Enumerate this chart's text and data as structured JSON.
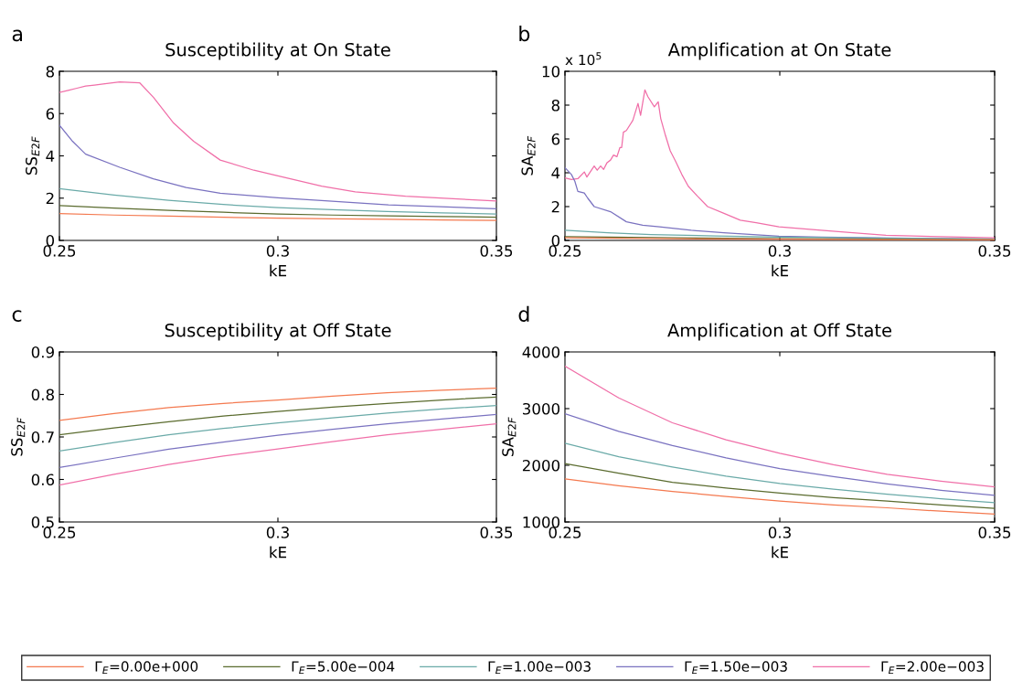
{
  "chart_data": [
    {
      "type": "line",
      "title": "Susceptibility at On State",
      "xlabel": "kE",
      "ylabel": "SS$_{E2F}$",
      "annotations": [
        "a"
      ],
      "xlim": [
        0.25,
        0.35
      ],
      "xticks": [
        0.25,
        0.3,
        0.35
      ],
      "ylim": [
        0,
        8
      ],
      "yticks": [
        0,
        2,
        4,
        6,
        8
      ],
      "grid": false,
      "legend": "bottom",
      "series": [
        {
          "name": "Γ$_{E}$=0.00e+000",
          "color": "#f4794f",
          "x": [
            0.25,
            0.2625,
            0.275,
            0.2875,
            0.3,
            0.3125,
            0.325,
            0.3375,
            0.35
          ],
          "values": [
            1.27,
            1.2,
            1.15,
            1.1,
            1.05,
            1.02,
            1.0,
            0.97,
            0.95
          ]
        },
        {
          "name": "Γ$_{E}$=5.00e−004",
          "color": "#5a6b2e",
          "x": [
            0.25,
            0.2625,
            0.275,
            0.2875,
            0.3,
            0.3125,
            0.325,
            0.3375,
            0.35
          ],
          "values": [
            1.65,
            1.53,
            1.42,
            1.33,
            1.25,
            1.2,
            1.16,
            1.13,
            1.1
          ]
        },
        {
          "name": "Γ$_{E}$=1.00e−003",
          "color": "#6aaaa8",
          "x": [
            0.25,
            0.2625,
            0.275,
            0.2875,
            0.3,
            0.3125,
            0.325,
            0.3375,
            0.35
          ],
          "values": [
            2.45,
            2.15,
            1.9,
            1.7,
            1.55,
            1.45,
            1.37,
            1.3,
            1.25
          ]
        },
        {
          "name": "Γ$_{E}$=1.50e−003",
          "color": "#7a72c0",
          "x": [
            0.25,
            0.253,
            0.256,
            0.2638,
            0.2715,
            0.279,
            0.2868,
            0.3,
            0.31,
            0.3253,
            0.35
          ],
          "values": [
            5.45,
            4.69,
            4.08,
            3.46,
            2.91,
            2.5,
            2.23,
            2.02,
            1.89,
            1.68,
            1.5
          ]
        },
        {
          "name": "Γ$_{E}$=2.00e−003",
          "color": "#f06fa8",
          "x": [
            0.25,
            0.252,
            0.254,
            0.256,
            0.258,
            0.26,
            0.2638,
            0.2684,
            0.2715,
            0.276,
            0.2807,
            0.2868,
            0.2945,
            0.3,
            0.31,
            0.3177,
            0.3292,
            0.35
          ],
          "values": [
            7.0,
            7.1,
            7.2,
            7.3,
            7.35,
            7.4,
            7.5,
            7.45,
            6.77,
            5.58,
            4.69,
            3.8,
            3.32,
            3.05,
            2.57,
            2.3,
            2.09,
            1.86
          ]
        }
      ]
    },
    {
      "type": "line",
      "title": "Amplification at On State",
      "xlabel": "kE",
      "ylabel": "SA$_{E2F}$",
      "annotations": [
        "b",
        "x 10$^{5}$"
      ],
      "xlim": [
        0.25,
        0.35
      ],
      "xticks": [
        0.25,
        0.3,
        0.35
      ],
      "ylim": [
        0,
        10
      ],
      "yticks": [
        0,
        2,
        4,
        6,
        8,
        10
      ],
      "grid": false,
      "series": [
        {
          "color": "#f4794f",
          "x": [
            0.25,
            0.275,
            0.3,
            0.325,
            0.35
          ],
          "values": [
            0.15,
            0.1,
            0.07,
            0.05,
            0.03
          ]
        },
        {
          "color": "#5a6b2e",
          "x": [
            0.25,
            0.275,
            0.3,
            0.325,
            0.35
          ],
          "values": [
            0.22,
            0.15,
            0.1,
            0.07,
            0.05
          ]
        },
        {
          "color": "#6aaaa8",
          "x": [
            0.25,
            0.26,
            0.27,
            0.285,
            0.3,
            0.325,
            0.35
          ],
          "values": [
            0.6,
            0.45,
            0.35,
            0.27,
            0.2,
            0.13,
            0.08
          ]
        },
        {
          "color": "#7a72c0",
          "x": [
            0.25,
            0.2515,
            0.2523,
            0.253,
            0.2545,
            0.2553,
            0.2568,
            0.2606,
            0.2643,
            0.2681,
            0.272,
            0.2794,
            0.287,
            0.2998,
            0.3096,
            0.35
          ],
          "values": [
            4.3,
            3.9,
            3.5,
            2.9,
            2.8,
            2.5,
            2.0,
            1.7,
            1.1,
            0.9,
            0.8,
            0.6,
            0.45,
            0.25,
            0.2,
            0.07
          ]
        },
        {
          "color": "#f06fa8",
          "x": [
            0.25,
            0.2515,
            0.253,
            0.2545,
            0.2551,
            0.2568,
            0.2575,
            0.2583,
            0.259,
            0.2598,
            0.2606,
            0.2613,
            0.2621,
            0.2628,
            0.2632,
            0.2636,
            0.2643,
            0.2658,
            0.267,
            0.2676,
            0.2686,
            0.2693,
            0.2708,
            0.2717,
            0.2723,
            0.2734,
            0.2745,
            0.2757,
            0.2772,
            0.2787,
            0.2809,
            0.2832,
            0.287,
            0.2908,
            0.2945,
            0.2998,
            0.3096,
            0.3247,
            0.35
          ],
          "values": [
            3.7,
            3.6,
            3.65,
            4.05,
            3.75,
            4.4,
            4.15,
            4.4,
            4.2,
            4.6,
            4.75,
            5.05,
            4.95,
            5.5,
            5.5,
            6.4,
            6.5,
            7.1,
            8.1,
            7.4,
            8.9,
            8.5,
            7.9,
            8.2,
            7.2,
            6.2,
            5.3,
            4.7,
            3.9,
            3.2,
            2.6,
            2.0,
            1.6,
            1.2,
            1.05,
            0.8,
            0.6,
            0.3,
            0.15
          ]
        }
      ]
    },
    {
      "type": "line",
      "title": "Susceptibility at Off State",
      "xlabel": "kE",
      "ylabel": "SS$_{E2F}$",
      "annotations": [
        "c"
      ],
      "xlim": [
        0.25,
        0.35
      ],
      "xticks": [
        0.25,
        0.3,
        0.35
      ],
      "ylim": [
        0.5,
        0.9
      ],
      "yticks": [
        0.5,
        0.6,
        0.7,
        0.8,
        0.9
      ],
      "grid": false,
      "series": [
        {
          "color": "#f4794f",
          "x": [
            0.25,
            0.2625,
            0.275,
            0.2875,
            0.3,
            0.3125,
            0.325,
            0.3375,
            0.35
          ],
          "values": [
            0.739,
            0.755,
            0.769,
            0.779,
            0.787,
            0.796,
            0.804,
            0.81,
            0.815
          ]
        },
        {
          "color": "#5a6b2e",
          "x": [
            0.25,
            0.2625,
            0.275,
            0.2875,
            0.3,
            0.3125,
            0.325,
            0.3375,
            0.35
          ],
          "values": [
            0.705,
            0.721,
            0.736,
            0.749,
            0.76,
            0.77,
            0.779,
            0.787,
            0.794
          ]
        },
        {
          "color": "#6aaaa8",
          "x": [
            0.25,
            0.2625,
            0.275,
            0.2875,
            0.3,
            0.3125,
            0.325,
            0.3375,
            0.35
          ],
          "values": [
            0.667,
            0.687,
            0.705,
            0.72,
            0.733,
            0.745,
            0.756,
            0.766,
            0.774
          ]
        },
        {
          "color": "#7a72c0",
          "x": [
            0.25,
            0.2625,
            0.275,
            0.2875,
            0.3,
            0.3125,
            0.325,
            0.3375,
            0.35
          ],
          "values": [
            0.628,
            0.65,
            0.671,
            0.688,
            0.704,
            0.718,
            0.731,
            0.742,
            0.753
          ]
        },
        {
          "color": "#f06fa8",
          "x": [
            0.25,
            0.2625,
            0.275,
            0.2875,
            0.3,
            0.3125,
            0.325,
            0.3375,
            0.35
          ],
          "values": [
            0.587,
            0.612,
            0.635,
            0.655,
            0.672,
            0.689,
            0.705,
            0.718,
            0.731
          ]
        }
      ]
    },
    {
      "type": "line",
      "title": "Amplification at Off State",
      "xlabel": "kE",
      "ylabel": "SA$_{E2F}$",
      "annotations": [
        "d"
      ],
      "xlim": [
        0.25,
        0.35
      ],
      "xticks": [
        0.25,
        0.3,
        0.35
      ],
      "ylim": [
        1000,
        4000
      ],
      "yticks": [
        1000,
        2000,
        3000,
        4000
      ],
      "grid": false,
      "series": [
        {
          "color": "#f4794f",
          "x": [
            0.25,
            0.2625,
            0.275,
            0.2875,
            0.3,
            0.3125,
            0.325,
            0.3375,
            0.35
          ],
          "values": [
            1760,
            1640,
            1540,
            1450,
            1370,
            1300,
            1250,
            1190,
            1140
          ]
        },
        {
          "color": "#5a6b2e",
          "x": [
            0.25,
            0.2625,
            0.275,
            0.2875,
            0.3,
            0.3125,
            0.325,
            0.3375,
            0.35
          ],
          "values": [
            2030,
            1860,
            1700,
            1600,
            1510,
            1430,
            1370,
            1300,
            1240
          ]
        },
        {
          "color": "#6aaaa8",
          "x": [
            0.25,
            0.2625,
            0.275,
            0.2875,
            0.3,
            0.3125,
            0.325,
            0.3375,
            0.35
          ],
          "values": [
            2390,
            2150,
            1970,
            1810,
            1680,
            1580,
            1490,
            1410,
            1340
          ]
        },
        {
          "color": "#7a72c0",
          "x": [
            0.25,
            0.2625,
            0.275,
            0.2875,
            0.3,
            0.3125,
            0.325,
            0.3375,
            0.35
          ],
          "values": [
            2910,
            2600,
            2350,
            2130,
            1940,
            1800,
            1670,
            1560,
            1470
          ]
        },
        {
          "color": "#f06fa8",
          "x": [
            0.25,
            0.2625,
            0.275,
            0.2875,
            0.3,
            0.3125,
            0.325,
            0.3375,
            0.35
          ],
          "values": [
            3750,
            3190,
            2750,
            2450,
            2210,
            2010,
            1840,
            1720,
            1620
          ]
        }
      ]
    }
  ]
}
